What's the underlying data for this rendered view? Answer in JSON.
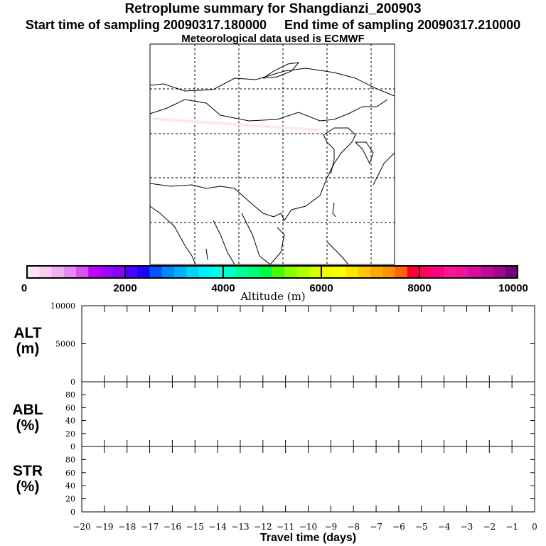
{
  "title": "Retroplume summary for Shangdianzi_200903",
  "subtitle_start": "Start time of sampling 20090317.180000",
  "subtitle_end": "End time of sampling 20090317.210000",
  "subtitle2": "Meteorological data used is ECMWF",
  "colorbar": {
    "label": "Altitude (m)",
    "ticks": [
      "0",
      "2000",
      "4000",
      "6000",
      "8000",
      "10000"
    ],
    "colors": [
      "#fde6f7",
      "#f8cdf2",
      "#f2b0f3",
      "#e68af5",
      "#d455f5",
      "#c000ff",
      "#a600ff",
      "#8800ff",
      "#4d00ff",
      "#1e00ff",
      "#0055ff",
      "#0088ff",
      "#00b0ff",
      "#00d4ff",
      "#00f0ff",
      "#00ffe6",
      "#00ffcc",
      "#00ff99",
      "#00ff77",
      "#00ff44",
      "#44ff00",
      "#88ff00",
      "#b0ff00",
      "#d8ff00",
      "#eeff00",
      "#ffff00",
      "#ffe600",
      "#ffc800",
      "#ffaa00",
      "#ff9100",
      "#ff6600",
      "#ff0033",
      "#ff0066",
      "#ff0080",
      "#ff1493",
      "#f0109a",
      "#d80c9e",
      "#c0089a",
      "#a00490",
      "#780070"
    ]
  },
  "chart_data": [
    {
      "type": "line",
      "panel": "ALT",
      "ylabel": "ALT (m)",
      "ylim": [
        0,
        10000
      ],
      "yticks": [
        "10000",
        "5000",
        "0"
      ],
      "series": []
    },
    {
      "type": "line",
      "panel": "ABL",
      "ylabel": "ABL (%)",
      "ylim": [
        0,
        100
      ],
      "yticks": [
        "80",
        "60",
        "40",
        "20",
        "0"
      ],
      "series": []
    },
    {
      "type": "line",
      "panel": "STR",
      "ylabel": "STR (%)",
      "ylim": [
        0,
        100
      ],
      "yticks": [
        "80",
        "60",
        "40",
        "20",
        "0"
      ],
      "series": []
    },
    {
      "xlabel": "Travel time (days)",
      "xlim": [
        -20,
        0
      ],
      "xticks": [
        "−20",
        "−19",
        "−18",
        "−17",
        "−16",
        "−15",
        "−14",
        "−13",
        "−12",
        "−11",
        "−10",
        "−9",
        "−8",
        "−7",
        "−6",
        "−5",
        "−4",
        "−3",
        "−2",
        "−1",
        "0"
      ]
    }
  ],
  "panel_labels": {
    "alt": [
      "ALT",
      "(m)"
    ],
    "abl": [
      "ABL",
      "(%)"
    ],
    "str": [
      "STR",
      "(%)"
    ]
  }
}
